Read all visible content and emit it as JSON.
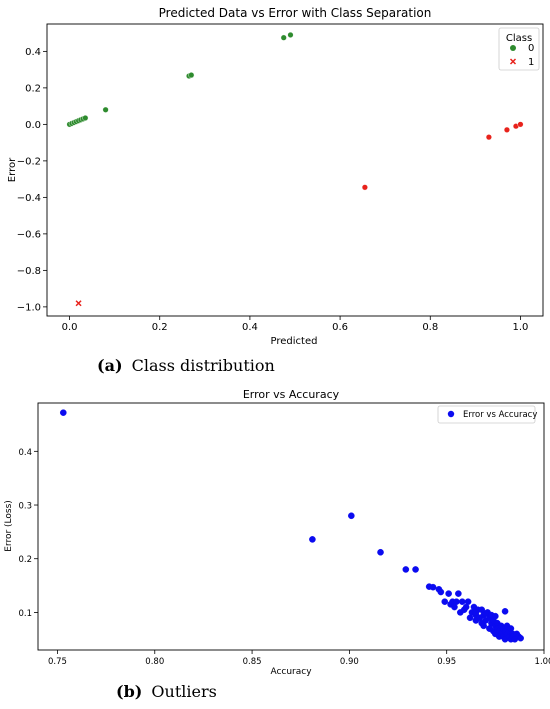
{
  "chart_data": [
    {
      "type": "scatter",
      "title": "Predicted Data vs Error with Class Separation",
      "xlabel": "Predicted",
      "ylabel": "Error",
      "xlim": [
        -0.05,
        1.05
      ],
      "ylim": [
        -1.05,
        0.55
      ],
      "xticks": [
        0.0,
        0.2,
        0.4,
        0.6,
        0.8,
        1.0
      ],
      "xtick_labels": [
        "0.0",
        "0.2",
        "0.4",
        "0.6",
        "0.8",
        "1.0"
      ],
      "yticks": [
        -1.0,
        -0.8,
        -0.6,
        -0.4,
        -0.2,
        0.0,
        0.2,
        0.4
      ],
      "ytick_labels": [
        "−1.0",
        "−0.8",
        "−0.6",
        "−0.4",
        "−0.2",
        "0.0",
        "0.2",
        "0.4"
      ],
      "grid": false,
      "legend": {
        "title": "Class",
        "placement": "top-right",
        "entries": [
          "0",
          "1"
        ]
      },
      "series": [
        {
          "name": "0",
          "marker": "circle",
          "color": "#2e8b2e",
          "x": [
            0.0,
            0.005,
            0.01,
            0.015,
            0.02,
            0.025,
            0.03,
            0.035,
            0.08,
            0.265,
            0.27,
            0.475,
            0.49
          ],
          "y": [
            0.0,
            0.005,
            0.01,
            0.015,
            0.02,
            0.025,
            0.03,
            0.035,
            0.08,
            0.265,
            0.27,
            0.475,
            0.49
          ]
        },
        {
          "name": "1",
          "marker": "x",
          "color": "#e8221b",
          "x": [
            0.02
          ],
          "y": [
            -0.98
          ]
        },
        {
          "marker": "circle",
          "color": "#e8221b",
          "x": [
            0.655,
            0.93,
            0.97,
            0.99,
            1.0
          ],
          "y": [
            -0.345,
            -0.07,
            -0.03,
            -0.01,
            0.0
          ]
        }
      ]
    },
    {
      "type": "scatter",
      "title": "Error vs Accuracy",
      "xlabel": "Accuracy",
      "ylabel": "Error (Loss)",
      "xlim": [
        0.74,
        1.0
      ],
      "ylim": [
        0.03,
        0.49
      ],
      "xticks": [
        0.75,
        0.8,
        0.85,
        0.9,
        0.95,
        1.0
      ],
      "xtick_labels": [
        "0.75",
        "0.80",
        "0.85",
        "0.90",
        "0.95",
        "1.00"
      ],
      "yticks": [
        0.1,
        0.2,
        0.3,
        0.4
      ],
      "ytick_labels": [
        "0.1",
        "0.2",
        "0.3",
        "0.4"
      ],
      "grid": false,
      "legend": {
        "placement": "top-right",
        "entries": [
          "Error vs Accuracy"
        ]
      },
      "series": [
        {
          "name": "Error vs Accuracy",
          "marker": "circle",
          "color": "#0b0bf0",
          "x": [
            0.753,
            0.881,
            0.901,
            0.916,
            0.929,
            0.934,
            0.941,
            0.943,
            0.946,
            0.947,
            0.949,
            0.951,
            0.952,
            0.953,
            0.954,
            0.955,
            0.956,
            0.957,
            0.958,
            0.959,
            0.96,
            0.961,
            0.962,
            0.963,
            0.964,
            0.965,
            0.965,
            0.966,
            0.967,
            0.968,
            0.969,
            0.969,
            0.97,
            0.971,
            0.972,
            0.972,
            0.973,
            0.973,
            0.974,
            0.974,
            0.975,
            0.975,
            0.976,
            0.976,
            0.977,
            0.977,
            0.978,
            0.978,
            0.979,
            0.979,
            0.98,
            0.98,
            0.981,
            0.981,
            0.982,
            0.982,
            0.983,
            0.983,
            0.984,
            0.984,
            0.985,
            0.986,
            0.987,
            0.988,
            0.97,
            0.975,
            0.98,
            0.965,
            0.968,
            0.972
          ],
          "y": [
            0.472,
            0.236,
            0.28,
            0.212,
            0.18,
            0.18,
            0.148,
            0.147,
            0.143,
            0.138,
            0.12,
            0.135,
            0.115,
            0.12,
            0.11,
            0.12,
            0.135,
            0.1,
            0.12,
            0.105,
            0.11,
            0.12,
            0.09,
            0.1,
            0.11,
            0.095,
            0.085,
            0.105,
            0.09,
            0.08,
            0.095,
            0.075,
            0.085,
            0.1,
            0.09,
            0.07,
            0.08,
            0.095,
            0.065,
            0.085,
            0.075,
            0.06,
            0.08,
            0.07,
            0.065,
            0.055,
            0.075,
            0.06,
            0.07,
            0.055,
            0.065,
            0.05,
            0.06,
            0.075,
            0.055,
            0.065,
            0.05,
            0.07,
            0.06,
            0.055,
            0.05,
            0.06,
            0.055,
            0.052,
            0.098,
            0.093,
            0.102,
            0.1,
            0.105,
            0.07
          ]
        }
      ]
    }
  ],
  "captions": [
    {
      "letter": "(a)",
      "text": "Class distribution"
    },
    {
      "letter": "(b)",
      "text": "Outliers"
    }
  ]
}
